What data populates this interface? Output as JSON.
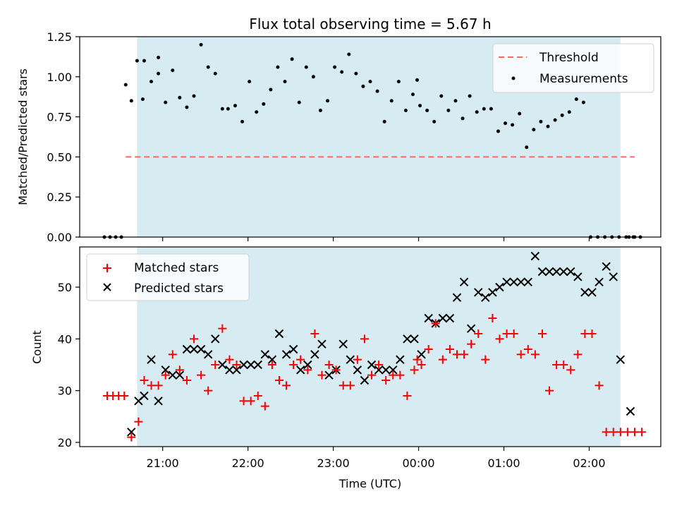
{
  "chart_data": [
    {
      "type": "scatter",
      "title": "Flux total observing time = 5.67 h",
      "xlabel": "",
      "ylabel": "Matched/Predicted stars",
      "xlim": [
        "20:19",
        "02:32"
      ],
      "ylim": [
        0,
        1.25
      ],
      "yticks": [
        "0.00",
        "0.25",
        "0.50",
        "0.75",
        "1.00",
        "1.25"
      ],
      "x_tick_times": [
        "21:00",
        "22:00",
        "23:00",
        "00:00",
        "01:00",
        "02:00"
      ],
      "shaded_span": [
        "20:42",
        "02:22"
      ],
      "shade_color": "#add8e6",
      "threshold": {
        "name": "Threshold",
        "value": 0.5,
        "x_range": [
          "20:34",
          "02:32"
        ],
        "color": "#ff6666"
      },
      "legend": {
        "position": "top-right",
        "entries": [
          "Threshold",
          "Measurements"
        ]
      },
      "series": [
        {
          "name": "Measurements",
          "color": "#000000",
          "x": [
            "20:34",
            "20:38",
            "20:42",
            "20:46",
            "20:47",
            "20:52",
            "20:57",
            "20:57",
            "21:02",
            "21:07",
            "21:12",
            "21:17",
            "21:22",
            "21:27",
            "21:32",
            "21:37",
            "21:42",
            "21:46",
            "21:51",
            "21:56",
            "22:01",
            "22:06",
            "22:11",
            "22:16",
            "22:21",
            "22:26",
            "22:31",
            "22:36",
            "22:41",
            "22:46",
            "22:51",
            "22:56",
            "23:01",
            "23:06",
            "23:11",
            "23:16",
            "23:21",
            "23:26",
            "23:31",
            "23:36",
            "23:41",
            "23:46",
            "23:51",
            "23:56",
            "23:59",
            "00:01",
            "00:06",
            "00:11",
            "00:16",
            "00:21",
            "00:26",
            "00:31",
            "00:36",
            "00:41",
            "00:46",
            "00:51",
            "00:56",
            "01:01",
            "01:06",
            "01:11",
            "01:16",
            "01:21",
            "01:26",
            "01:31",
            "01:36",
            "01:41",
            "01:46",
            "01:51",
            "01:56",
            "02:01",
            "02:06",
            "02:11",
            "02:16",
            "02:21",
            "02:26",
            "02:31"
          ],
          "y": [
            0.95,
            0.85,
            1.1,
            0.86,
            1.1,
            0.97,
            1.12,
            1.02,
            0.84,
            1.04,
            0.87,
            0.81,
            0.88,
            1.2,
            1.06,
            1.02,
            0.8,
            0.8,
            0.82,
            0.72,
            0.97,
            0.78,
            0.83,
            0.92,
            1.06,
            0.97,
            1.11,
            0.84,
            1.06,
            1.0,
            0.79,
            0.85,
            1.06,
            1.03,
            1.14,
            1.02,
            0.94,
            0.97,
            0.91,
            0.72,
            0.85,
            0.97,
            0.79,
            0.89,
            0.98,
            0.82,
            0.79,
            0.72,
            0.88,
            0.79,
            0.85,
            0.74,
            0.88,
            0.78,
            0.8,
            0.8,
            0.66,
            0.71,
            0.7,
            0.77,
            0.56,
            0.67,
            0.72,
            0.69,
            0.73,
            0.76,
            0.78,
            0.86,
            0.84,
            0.0,
            0.0,
            0.0,
            0.0,
            0.0,
            0.0,
            0.0
          ],
          "zero_x": [
            "20:19",
            "20:23",
            "20:27",
            "20:31",
            "02:28",
            "02:32",
            "02:36"
          ]
        }
      ]
    },
    {
      "type": "scatter",
      "title": "",
      "xlabel": "Time (UTC)",
      "ylabel": "Count",
      "xlim": [
        "20:19",
        "02:32"
      ],
      "ylim": [
        20,
        56
      ],
      "yticks": [
        "20",
        "30",
        "40",
        "50"
      ],
      "x_tick_times": [
        "21:00",
        "22:00",
        "23:00",
        "00:00",
        "01:00",
        "02:00"
      ],
      "x_tick_labels": [
        "21:00",
        "22:00",
        "23:00",
        "00:00",
        "01:00",
        "02:00"
      ],
      "shaded_span": [
        "20:42",
        "02:22"
      ],
      "shade_color": "#add8e6",
      "legend": {
        "position": "top-left",
        "entries": [
          "Matched stars",
          "Predicted stars"
        ]
      },
      "series": [
        {
          "name": "Matched stars",
          "marker": "+",
          "color": "#ff0000",
          "x": [
            "20:21",
            "20:25",
            "20:29",
            "20:33",
            "20:38",
            "20:43",
            "20:47",
            "20:52",
            "20:57",
            "21:02",
            "21:07",
            "21:12",
            "21:17",
            "21:22",
            "21:27",
            "21:32",
            "21:37",
            "21:42",
            "21:47",
            "21:52",
            "21:57",
            "22:02",
            "22:07",
            "22:12",
            "22:17",
            "22:22",
            "22:27",
            "22:32",
            "22:37",
            "22:42",
            "22:47",
            "22:52",
            "22:57",
            "23:02",
            "23:07",
            "23:12",
            "23:17",
            "23:22",
            "23:27",
            "23:32",
            "23:37",
            "23:42",
            "23:47",
            "23:52",
            "23:57",
            "23:59",
            "00:02",
            "00:07",
            "00:12",
            "00:17",
            "00:22",
            "00:27",
            "00:32",
            "00:37",
            "00:42",
            "00:47",
            "00:52",
            "00:57",
            "01:02",
            "01:07",
            "01:12",
            "01:17",
            "01:22",
            "01:27",
            "01:32",
            "01:37",
            "01:42",
            "01:47",
            "01:52",
            "01:57",
            "02:02",
            "02:07",
            "02:12",
            "02:17",
            "02:22",
            "02:27",
            "02:32",
            "02:37"
          ],
          "y": [
            29,
            29,
            29,
            29,
            21,
            24,
            32,
            31,
            31,
            33,
            37,
            34,
            32,
            40,
            33,
            30,
            35,
            42,
            36,
            35,
            28,
            28,
            29,
            27,
            35,
            32,
            31,
            35,
            36,
            34,
            41,
            33,
            35,
            34,
            31,
            31,
            36,
            40,
            33,
            35,
            32,
            33,
            33,
            29,
            34,
            36,
            35,
            38,
            43,
            36,
            38,
            37,
            37,
            39,
            41,
            36,
            44,
            40,
            41,
            41,
            37,
            38,
            37,
            41,
            30,
            35,
            35,
            34,
            37,
            41,
            41,
            31,
            22,
            22,
            22,
            22,
            22,
            22
          ]
        },
        {
          "name": "Predicted stars",
          "marker": "x",
          "color": "#000000",
          "x": [
            "20:38",
            "20:43",
            "20:47",
            "20:52",
            "20:57",
            "21:02",
            "21:07",
            "21:12",
            "21:17",
            "21:22",
            "21:27",
            "21:32",
            "21:37",
            "21:42",
            "21:47",
            "21:52",
            "21:57",
            "22:02",
            "22:07",
            "22:12",
            "22:17",
            "22:22",
            "22:27",
            "22:32",
            "22:37",
            "22:42",
            "22:47",
            "22:52",
            "22:57",
            "23:02",
            "23:07",
            "23:12",
            "23:17",
            "23:22",
            "23:27",
            "23:32",
            "23:37",
            "23:42",
            "23:47",
            "23:52",
            "23:57",
            "00:02",
            "00:07",
            "00:12",
            "00:17",
            "00:22",
            "00:27",
            "00:32",
            "00:37",
            "00:42",
            "00:47",
            "00:52",
            "00:57",
            "01:02",
            "01:07",
            "01:12",
            "01:17",
            "01:22",
            "01:27",
            "01:32",
            "01:37",
            "01:42",
            "01:47",
            "01:52",
            "01:57",
            "02:02",
            "02:07",
            "02:12",
            "02:17",
            "02:22"
          ],
          "y": [
            22,
            28,
            29,
            36,
            28,
            34,
            33,
            33,
            38,
            38,
            38,
            37,
            40,
            35,
            34,
            34,
            35,
            35,
            35,
            37,
            36,
            41,
            37,
            38,
            34,
            35,
            37,
            39,
            33,
            34,
            39,
            36,
            34,
            32,
            35,
            34,
            34,
            34,
            36,
            40,
            40,
            37,
            44,
            43,
            44,
            44,
            48,
            51,
            42,
            49,
            48,
            49,
            50,
            51,
            51,
            51,
            51,
            56,
            53,
            53,
            53,
            53,
            53,
            52,
            49,
            49,
            51,
            54,
            52,
            36
          ]
        }
      ],
      "extra_points": {
        "Predicted stars": {
          "x": [
            "02:29"
          ],
          "y": [
            26
          ]
        }
      }
    }
  ]
}
